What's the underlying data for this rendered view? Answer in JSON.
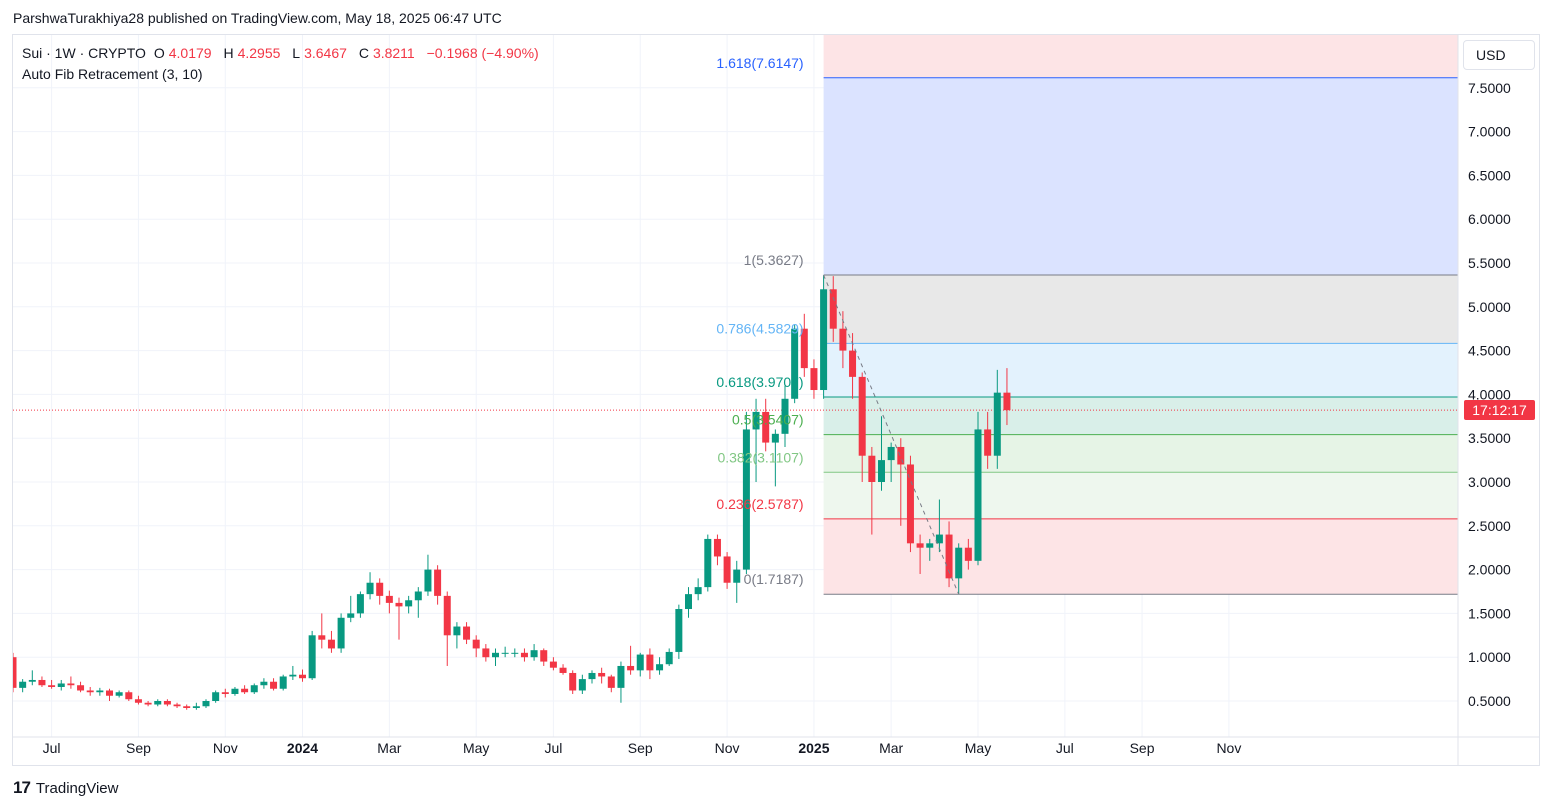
{
  "header": {
    "attribution": "ParshwaTurakhiya28 published on TradingView.com, May 18, 2025 06:47 UTC"
  },
  "legend": {
    "symbol": "Sui · 1W · CRYPTO",
    "open_label": "O",
    "open": "4.0179",
    "high_label": "H",
    "high": "4.2955",
    "low_label": "L",
    "low": "3.6467",
    "close_label": "C",
    "close": "3.8211",
    "change": "−0.1968 (−4.90%)",
    "indicator": "Auto Fib Retracement (3, 10)"
  },
  "currency_button": "USD",
  "countdown": "17:12:17",
  "brand": {
    "logo": "17",
    "name": "TradingView"
  },
  "colors": {
    "up": "#089981",
    "down": "#f23645",
    "grid": "#f0f3fa",
    "fib_1618": "#2962ff",
    "fib_0786": "#64b5f6",
    "fib_0618": "#089981",
    "fib_05": "#4caf50",
    "fib_0382": "#81c784",
    "fib_0236": "#f23645",
    "fib_0": "#787b86"
  },
  "chart_data": {
    "type": "candlestick",
    "timeframe": "1W",
    "y_scale": "linear",
    "ylim": [
      0.2,
      8.1
    ],
    "y_ticks": [
      {
        "v": 0.5,
        "label": "0.5000"
      },
      {
        "v": 1.0,
        "label": "1.0000"
      },
      {
        "v": 1.5,
        "label": "1.5000"
      },
      {
        "v": 2.0,
        "label": "2.0000"
      },
      {
        "v": 2.5,
        "label": "2.5000"
      },
      {
        "v": 3.0,
        "label": "3.0000"
      },
      {
        "v": 3.5,
        "label": "3.5000"
      },
      {
        "v": 4.0,
        "label": "4.0000"
      },
      {
        "v": 4.5,
        "label": "4.5000"
      },
      {
        "v": 5.0,
        "label": "5.0000"
      },
      {
        "v": 5.5,
        "label": "5.5000"
      },
      {
        "v": 6.0,
        "label": "6.0000"
      },
      {
        "v": 6.5,
        "label": "6.5000"
      },
      {
        "v": 7.0,
        "label": "7.0000"
      },
      {
        "v": 7.5,
        "label": "7.5000"
      }
    ],
    "x_ticks": [
      {
        "i": 4,
        "label": "Jul",
        "bold": false
      },
      {
        "i": 13,
        "label": "Sep",
        "bold": false
      },
      {
        "i": 22,
        "label": "Nov",
        "bold": false
      },
      {
        "i": 30,
        "label": "2024",
        "bold": true
      },
      {
        "i": 39,
        "label": "Mar",
        "bold": false
      },
      {
        "i": 48,
        "label": "May",
        "bold": false
      },
      {
        "i": 56,
        "label": "Jul",
        "bold": false
      },
      {
        "i": 65,
        "label": "Sep",
        "bold": false
      },
      {
        "i": 74,
        "label": "Nov",
        "bold": false
      },
      {
        "i": 83,
        "label": "2025",
        "bold": true
      },
      {
        "i": 91,
        "label": "Mar",
        "bold": false
      },
      {
        "i": 100,
        "label": "May",
        "bold": false
      },
      {
        "i": 109,
        "label": "Jul",
        "bold": false
      },
      {
        "i": 117,
        "label": "Sep",
        "bold": false
      },
      {
        "i": 126,
        "label": "Nov",
        "bold": false
      }
    ],
    "candles": [
      [
        1.0,
        1.05,
        0.6,
        0.65
      ],
      [
        0.65,
        0.75,
        0.6,
        0.72
      ],
      [
        0.72,
        0.85,
        0.68,
        0.74
      ],
      [
        0.74,
        0.78,
        0.66,
        0.68
      ],
      [
        0.68,
        0.74,
        0.64,
        0.66
      ],
      [
        0.66,
        0.74,
        0.62,
        0.7
      ],
      [
        0.7,
        0.78,
        0.64,
        0.68
      ],
      [
        0.68,
        0.72,
        0.6,
        0.62
      ],
      [
        0.62,
        0.66,
        0.56,
        0.6
      ],
      [
        0.6,
        0.65,
        0.56,
        0.62
      ],
      [
        0.62,
        0.64,
        0.5,
        0.56
      ],
      [
        0.56,
        0.62,
        0.54,
        0.6
      ],
      [
        0.6,
        0.62,
        0.5,
        0.52
      ],
      [
        0.52,
        0.56,
        0.46,
        0.48
      ],
      [
        0.48,
        0.5,
        0.44,
        0.46
      ],
      [
        0.46,
        0.52,
        0.44,
        0.5
      ],
      [
        0.5,
        0.52,
        0.44,
        0.46
      ],
      [
        0.46,
        0.48,
        0.42,
        0.44
      ],
      [
        0.44,
        0.46,
        0.4,
        0.42
      ],
      [
        0.42,
        0.48,
        0.4,
        0.44
      ],
      [
        0.44,
        0.52,
        0.42,
        0.5
      ],
      [
        0.5,
        0.62,
        0.48,
        0.6
      ],
      [
        0.6,
        0.64,
        0.54,
        0.58
      ],
      [
        0.58,
        0.66,
        0.56,
        0.64
      ],
      [
        0.64,
        0.68,
        0.58,
        0.6
      ],
      [
        0.6,
        0.7,
        0.58,
        0.68
      ],
      [
        0.68,
        0.76,
        0.64,
        0.72
      ],
      [
        0.72,
        0.76,
        0.62,
        0.64
      ],
      [
        0.64,
        0.8,
        0.62,
        0.78
      ],
      [
        0.78,
        0.9,
        0.74,
        0.8
      ],
      [
        0.8,
        0.86,
        0.72,
        0.76
      ],
      [
        0.76,
        1.3,
        0.74,
        1.25
      ],
      [
        1.25,
        1.5,
        1.1,
        1.2
      ],
      [
        1.2,
        1.3,
        1.05,
        1.1
      ],
      [
        1.1,
        1.5,
        1.05,
        1.45
      ],
      [
        1.45,
        1.7,
        1.4,
        1.5
      ],
      [
        1.5,
        1.75,
        1.45,
        1.72
      ],
      [
        1.72,
        1.97,
        1.66,
        1.85
      ],
      [
        1.85,
        1.9,
        1.6,
        1.7
      ],
      [
        1.7,
        1.76,
        1.5,
        1.62
      ],
      [
        1.62,
        1.68,
        1.2,
        1.58
      ],
      [
        1.58,
        1.7,
        1.5,
        1.65
      ],
      [
        1.65,
        1.8,
        1.45,
        1.75
      ],
      [
        1.75,
        2.17,
        1.7,
        2.0
      ],
      [
        2.0,
        2.05,
        1.6,
        1.7
      ],
      [
        1.7,
        1.75,
        0.9,
        1.25
      ],
      [
        1.25,
        1.4,
        1.1,
        1.35
      ],
      [
        1.35,
        1.4,
        1.15,
        1.2
      ],
      [
        1.2,
        1.25,
        1.0,
        1.1
      ],
      [
        1.1,
        1.15,
        0.95,
        1.0
      ],
      [
        1.0,
        1.1,
        0.9,
        1.05
      ],
      [
        1.05,
        1.12,
        1.0,
        1.05
      ],
      [
        1.05,
        1.1,
        1.0,
        1.05
      ],
      [
        1.05,
        1.1,
        0.95,
        1.0
      ],
      [
        1.0,
        1.15,
        0.96,
        1.08
      ],
      [
        1.08,
        1.1,
        0.9,
        0.95
      ],
      [
        0.95,
        1.0,
        0.85,
        0.88
      ],
      [
        0.88,
        0.92,
        0.8,
        0.82
      ],
      [
        0.82,
        0.85,
        0.58,
        0.62
      ],
      [
        0.62,
        0.8,
        0.58,
        0.75
      ],
      [
        0.75,
        0.85,
        0.7,
        0.82
      ],
      [
        0.82,
        0.88,
        0.7,
        0.78
      ],
      [
        0.78,
        0.8,
        0.6,
        0.65
      ],
      [
        0.65,
        0.95,
        0.48,
        0.9
      ],
      [
        0.9,
        1.13,
        0.8,
        0.85
      ],
      [
        0.85,
        1.05,
        0.78,
        1.03
      ],
      [
        1.03,
        1.1,
        0.75,
        0.85
      ],
      [
        0.85,
        1.0,
        0.8,
        0.92
      ],
      [
        0.92,
        1.1,
        0.9,
        1.06
      ],
      [
        1.06,
        1.6,
        0.98,
        1.55
      ],
      [
        1.55,
        1.8,
        1.45,
        1.72
      ],
      [
        1.72,
        1.9,
        1.65,
        1.8
      ],
      [
        1.8,
        2.4,
        1.75,
        2.35
      ],
      [
        2.35,
        2.4,
        2.05,
        2.15
      ],
      [
        2.15,
        2.2,
        1.78,
        1.85
      ],
      [
        1.85,
        2.1,
        1.62,
        2.0
      ],
      [
        2.0,
        3.8,
        1.95,
        3.6
      ],
      [
        3.6,
        3.95,
        3.0,
        3.8
      ],
      [
        3.8,
        3.95,
        3.35,
        3.45
      ],
      [
        3.45,
        3.6,
        2.95,
        3.55
      ],
      [
        3.55,
        4.1,
        3.4,
        3.95
      ],
      [
        3.95,
        4.8,
        3.9,
        4.75
      ],
      [
        4.75,
        4.92,
        4.2,
        4.3
      ],
      [
        4.3,
        4.4,
        3.95,
        4.05
      ],
      [
        4.05,
        5.36,
        3.95,
        5.2
      ],
      [
        5.2,
        5.35,
        4.6,
        4.75
      ],
      [
        4.75,
        4.95,
        4.3,
        4.5
      ],
      [
        4.5,
        4.7,
        3.95,
        4.2
      ],
      [
        4.2,
        4.25,
        3.0,
        3.3
      ],
      [
        3.3,
        3.4,
        2.4,
        3.0
      ],
      [
        3.0,
        3.75,
        2.9,
        3.25
      ],
      [
        3.25,
        3.45,
        3.0,
        3.4
      ],
      [
        3.4,
        3.5,
        2.5,
        3.2
      ],
      [
        3.2,
        3.3,
        2.2,
        2.3
      ],
      [
        2.3,
        2.4,
        1.95,
        2.25
      ],
      [
        2.25,
        2.35,
        2.1,
        2.3
      ],
      [
        2.3,
        2.8,
        2.2,
        2.4
      ],
      [
        2.4,
        2.55,
        1.8,
        1.9
      ],
      [
        1.9,
        2.3,
        1.72,
        2.25
      ],
      [
        2.25,
        2.35,
        2.0,
        2.1
      ],
      [
        2.1,
        3.8,
        2.05,
        3.6
      ],
      [
        3.6,
        3.8,
        3.15,
        3.3
      ],
      [
        3.3,
        4.28,
        3.15,
        4.02
      ],
      [
        4.02,
        4.3,
        3.65,
        3.82
      ]
    ],
    "fib_levels": [
      {
        "ratio": "1.618",
        "value": 7.6147,
        "label": "1.618(7.6147)",
        "color": "#2962ff",
        "fill": "#dbe3ff"
      },
      {
        "ratio": "1",
        "value": 5.3627,
        "label": "1(5.3627)",
        "color": "#787b86",
        "fill": "#e8e8e8"
      },
      {
        "ratio": "0.786",
        "value": 4.5829,
        "label": "0.786(4.5829)",
        "color": "#64b5f6",
        "fill": "#e3f2fd"
      },
      {
        "ratio": "0.618",
        "value": 3.9707,
        "label": "0.618(3.9707)",
        "color": "#089981",
        "fill": "#d9efe9"
      },
      {
        "ratio": "0.5",
        "value": 3.5407,
        "label": "0.5(3.5407)",
        "color": "#4caf50",
        "fill": "#e6f4e6"
      },
      {
        "ratio": "0.382",
        "value": 3.1107,
        "label": "0.382(3.1107)",
        "color": "#81c784",
        "fill": "#eef7ee"
      },
      {
        "ratio": "0.236",
        "value": 2.5787,
        "label": "0.236(2.5787)",
        "color": "#f23645",
        "fill": "#fde4e6"
      },
      {
        "ratio": "0",
        "value": 1.7187,
        "label": "0(1.7187)",
        "color": "#787b86",
        "fill": "#fde4e6"
      }
    ],
    "fib_start_index": 84,
    "trend_line": {
      "from": [
        84,
        5.3627
      ],
      "to": [
        98,
        1.7187
      ]
    },
    "current_price": 3.8211
  }
}
